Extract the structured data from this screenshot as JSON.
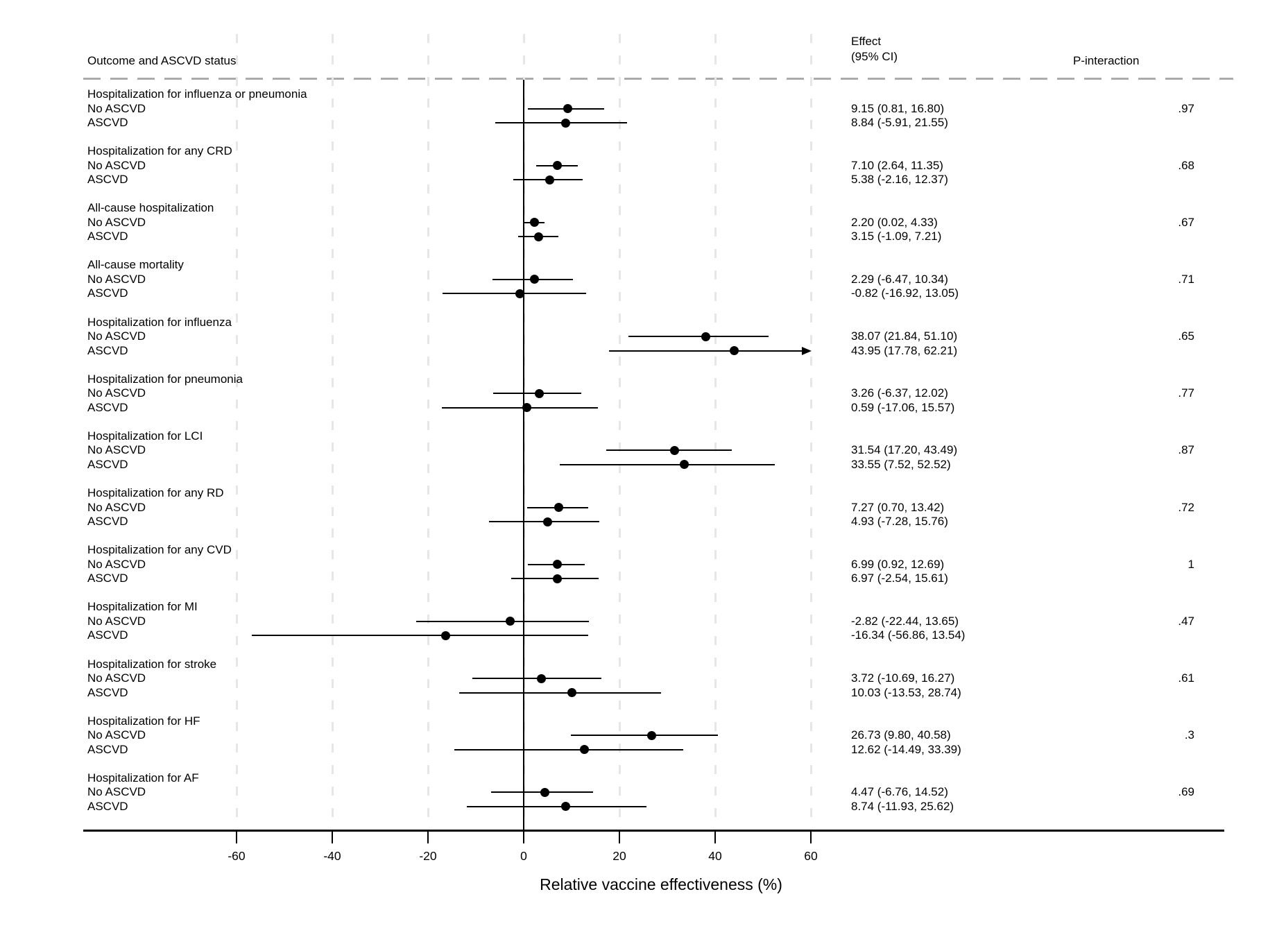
{
  "header": {
    "outcome_col": "Outcome and ASCVD status",
    "effect_col_line1": "Effect",
    "effect_col_line2": "(95% CI)",
    "p_col": "P-interaction"
  },
  "axis": {
    "title": "Relative vaccine effectiveness (%)",
    "tick_labels": [
      "-60",
      "-40",
      "-20",
      "0",
      "20",
      "40",
      "60"
    ]
  },
  "colors": {
    "marker": "#000000",
    "gridline": "#e6e6e6",
    "header_rule": "#ababab",
    "text": "#000000"
  },
  "chart_data": {
    "type": "scatter",
    "subtype": "forest-plot",
    "xlabel": "Relative vaccine effectiveness (%)",
    "xlim": [
      -60,
      60
    ],
    "x_ticks": [
      -60,
      -40,
      -20,
      0,
      20,
      40,
      60
    ],
    "grid": "vertical dashed gridlines at ticks, solid vertical reference line at 0",
    "legend_position": "none",
    "columns": [
      "Outcome and ASCVD status",
      "Effect (95% CI)",
      "P-interaction"
    ],
    "groups": [
      {
        "outcome": "Hospitalization for influenza or pneumonia",
        "p_interaction": ".97",
        "rows": [
          {
            "label": "No ASCVD",
            "effect": 9.15,
            "lower": 0.81,
            "upper": 16.8,
            "text": "9.15 (0.81, 16.80)",
            "clipped_right": false
          },
          {
            "label": "ASCVD",
            "effect": 8.84,
            "lower": -5.91,
            "upper": 21.55,
            "text": "8.84 (-5.91, 21.55)",
            "clipped_right": false
          }
        ]
      },
      {
        "outcome": "Hospitalization for any CRD",
        "p_interaction": ".68",
        "rows": [
          {
            "label": "No ASCVD",
            "effect": 7.1,
            "lower": 2.64,
            "upper": 11.35,
            "text": "7.10 (2.64, 11.35)",
            "clipped_right": false
          },
          {
            "label": "ASCVD",
            "effect": 5.38,
            "lower": -2.16,
            "upper": 12.37,
            "text": "5.38 (-2.16, 12.37)",
            "clipped_right": false
          }
        ]
      },
      {
        "outcome": "All-cause hospitalization",
        "p_interaction": ".67",
        "rows": [
          {
            "label": "No ASCVD",
            "effect": 2.2,
            "lower": 0.02,
            "upper": 4.33,
            "text": "2.20 (0.02, 4.33)",
            "clipped_right": false
          },
          {
            "label": "ASCVD",
            "effect": 3.15,
            "lower": -1.09,
            "upper": 7.21,
            "text": "3.15 (-1.09, 7.21)",
            "clipped_right": false
          }
        ]
      },
      {
        "outcome": "All-cause mortality",
        "p_interaction": ".71",
        "rows": [
          {
            "label": "No ASCVD",
            "effect": 2.29,
            "lower": -6.47,
            "upper": 10.34,
            "text": "2.29 (-6.47, 10.34)",
            "clipped_right": false
          },
          {
            "label": "ASCVD",
            "effect": -0.82,
            "lower": -16.92,
            "upper": 13.05,
            "text": "-0.82 (-16.92, 13.05)",
            "clipped_right": false
          }
        ]
      },
      {
        "outcome": "Hospitalization for influenza",
        "p_interaction": ".65",
        "rows": [
          {
            "label": "No ASCVD",
            "effect": 38.07,
            "lower": 21.84,
            "upper": 51.1,
            "text": "38.07 (21.84, 51.10)",
            "clipped_right": false
          },
          {
            "label": "ASCVD",
            "effect": 43.95,
            "lower": 17.78,
            "upper": 62.21,
            "text": "43.95 (17.78, 62.21)",
            "clipped_right": true
          }
        ]
      },
      {
        "outcome": "Hospitalization for pneumonia",
        "p_interaction": ".77",
        "rows": [
          {
            "label": "No ASCVD",
            "effect": 3.26,
            "lower": -6.37,
            "upper": 12.02,
            "text": "3.26 (-6.37, 12.02)",
            "clipped_right": false
          },
          {
            "label": "ASCVD",
            "effect": 0.59,
            "lower": -17.06,
            "upper": 15.57,
            "text": "0.59 (-17.06, 15.57)",
            "clipped_right": false
          }
        ]
      },
      {
        "outcome": "Hospitalization for LCI",
        "p_interaction": ".87",
        "rows": [
          {
            "label": "No ASCVD",
            "effect": 31.54,
            "lower": 17.2,
            "upper": 43.49,
            "text": "31.54 (17.20, 43.49)",
            "clipped_right": false
          },
          {
            "label": "ASCVD",
            "effect": 33.55,
            "lower": 7.52,
            "upper": 52.52,
            "text": "33.55 (7.52, 52.52)",
            "clipped_right": false
          }
        ]
      },
      {
        "outcome": "Hospitalization for any RD",
        "p_interaction": ".72",
        "rows": [
          {
            "label": "No ASCVD",
            "effect": 7.27,
            "lower": 0.7,
            "upper": 13.42,
            "text": "7.27 (0.70, 13.42)",
            "clipped_right": false
          },
          {
            "label": "ASCVD",
            "effect": 4.93,
            "lower": -7.28,
            "upper": 15.76,
            "text": "4.93 (-7.28, 15.76)",
            "clipped_right": false
          }
        ]
      },
      {
        "outcome": "Hospitalization for any CVD",
        "p_interaction": "1",
        "rows": [
          {
            "label": "No ASCVD",
            "effect": 6.99,
            "lower": 0.92,
            "upper": 12.69,
            "text": "6.99 (0.92, 12.69)",
            "clipped_right": false
          },
          {
            "label": "ASCVD",
            "effect": 6.97,
            "lower": -2.54,
            "upper": 15.61,
            "text": "6.97 (-2.54, 15.61)",
            "clipped_right": false
          }
        ]
      },
      {
        "outcome": "Hospitalization for MI",
        "p_interaction": ".47",
        "rows": [
          {
            "label": "No ASCVD",
            "effect": -2.82,
            "lower": -22.44,
            "upper": 13.65,
            "text": "-2.82 (-22.44, 13.65)",
            "clipped_right": false
          },
          {
            "label": "ASCVD",
            "effect": -16.34,
            "lower": -56.86,
            "upper": 13.54,
            "text": "-16.34 (-56.86, 13.54)",
            "clipped_right": false
          }
        ]
      },
      {
        "outcome": "Hospitalization for stroke",
        "p_interaction": ".61",
        "rows": [
          {
            "label": "No ASCVD",
            "effect": 3.72,
            "lower": -10.69,
            "upper": 16.27,
            "text": "3.72 (-10.69, 16.27)",
            "clipped_right": false
          },
          {
            "label": "ASCVD",
            "effect": 10.03,
            "lower": -13.53,
            "upper": 28.74,
            "text": "10.03 (-13.53, 28.74)",
            "clipped_right": false
          }
        ]
      },
      {
        "outcome": "Hospitalization for HF",
        "p_interaction": ".3",
        "rows": [
          {
            "label": "No ASCVD",
            "effect": 26.73,
            "lower": 9.8,
            "upper": 40.58,
            "text": "26.73 (9.80, 40.58)",
            "clipped_right": false
          },
          {
            "label": "ASCVD",
            "effect": 12.62,
            "lower": -14.49,
            "upper": 33.39,
            "text": "12.62 (-14.49, 33.39)",
            "clipped_right": false
          }
        ]
      },
      {
        "outcome": "Hospitalization for AF",
        "p_interaction": ".69",
        "rows": [
          {
            "label": "No ASCVD",
            "effect": 4.47,
            "lower": -6.76,
            "upper": 14.52,
            "text": "4.47 (-6.76, 14.52)",
            "clipped_right": false
          },
          {
            "label": "ASCVD",
            "effect": 8.74,
            "lower": -11.93,
            "upper": 25.62,
            "text": "8.74 (-11.93, 25.62)",
            "clipped_right": false
          }
        ]
      }
    ]
  }
}
